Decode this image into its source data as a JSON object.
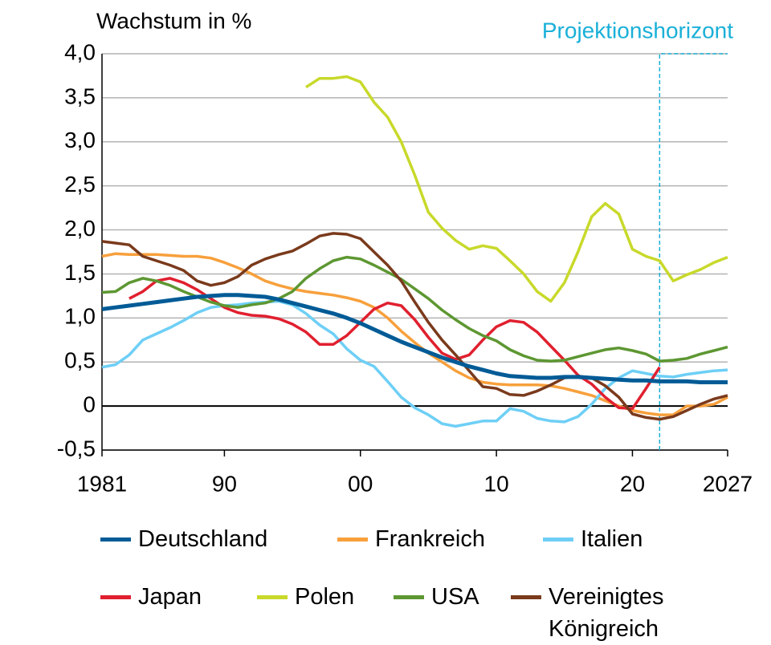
{
  "chart_data": {
    "type": "line",
    "title": "Wachstum in %",
    "annotation": {
      "label": "Projektionshorizont",
      "start": 2022,
      "end": 2027,
      "color": "#1ab0d8"
    },
    "x": [
      1981,
      1982,
      1983,
      1984,
      1985,
      1986,
      1987,
      1988,
      1989,
      1990,
      1991,
      1992,
      1993,
      1994,
      1995,
      1996,
      1997,
      1998,
      1999,
      2000,
      2001,
      2002,
      2003,
      2004,
      2005,
      2006,
      2007,
      2008,
      2009,
      2010,
      2011,
      2012,
      2013,
      2014,
      2015,
      2016,
      2017,
      2018,
      2019,
      2020,
      2021,
      2022,
      2023,
      2024,
      2025,
      2026,
      2027
    ],
    "xlim": [
      1981,
      2027
    ],
    "xticks": [
      {
        "value": 1981,
        "label": "1981"
      },
      {
        "value": 1990,
        "label": "90"
      },
      {
        "value": 2000,
        "label": "00"
      },
      {
        "value": 2010,
        "label": "10"
      },
      {
        "value": 2020,
        "label": "20"
      },
      {
        "value": 2027,
        "label": "2027"
      }
    ],
    "ylim": [
      -0.5,
      4.0
    ],
    "yticks": [
      {
        "value": -0.5,
        "label": "-0,5"
      },
      0,
      {
        "value": 0.5,
        "label": "0,5"
      },
      {
        "value": 1.0,
        "label": "1,0"
      },
      {
        "value": 1.5,
        "label": "1,5"
      },
      {
        "value": 2.0,
        "label": "2,0"
      },
      {
        "value": 2.5,
        "label": "2,5"
      },
      {
        "value": 3.0,
        "label": "3,0"
      },
      {
        "value": 3.5,
        "label": "3,5"
      },
      {
        "value": 4.0,
        "label": "4,0"
      }
    ],
    "grid": true,
    "series": [
      {
        "name": "Deutschland",
        "color": "#005b96",
        "values": [
          1.1,
          1.12,
          1.14,
          1.16,
          1.18,
          1.2,
          1.22,
          1.24,
          1.25,
          1.26,
          1.26,
          1.25,
          1.24,
          1.21,
          1.17,
          1.13,
          1.09,
          1.05,
          1.0,
          0.94,
          0.87,
          0.8,
          0.73,
          0.67,
          0.61,
          0.55,
          0.5,
          0.45,
          0.41,
          0.37,
          0.34,
          0.33,
          0.32,
          0.32,
          0.33,
          0.33,
          0.32,
          0.31,
          0.3,
          0.29,
          0.29,
          0.28,
          0.28,
          0.28,
          0.27,
          0.27,
          0.27
        ]
      },
      {
        "name": "Frankreich",
        "color": "#f7a03c",
        "values": [
          1.7,
          1.73,
          1.72,
          1.72,
          1.72,
          1.71,
          1.7,
          1.7,
          1.68,
          1.63,
          1.57,
          1.5,
          1.42,
          1.37,
          1.33,
          1.3,
          1.28,
          1.26,
          1.23,
          1.19,
          1.12,
          1.0,
          0.85,
          0.72,
          0.6,
          0.5,
          0.4,
          0.32,
          0.27,
          0.25,
          0.24,
          0.24,
          0.24,
          0.23,
          0.2,
          0.16,
          0.12,
          0.06,
          0.0,
          -0.05,
          -0.08,
          -0.1,
          -0.1,
          0.0,
          0.0,
          0.02,
          0.1
        ]
      },
      {
        "name": "Italien",
        "color": "#6ecff6",
        "values": [
          0.44,
          0.47,
          0.58,
          0.75,
          0.82,
          0.89,
          0.97,
          1.06,
          1.12,
          1.14,
          1.15,
          1.17,
          1.18,
          1.19,
          1.15,
          1.05,
          0.92,
          0.82,
          0.65,
          0.52,
          0.45,
          0.28,
          0.1,
          -0.02,
          -0.1,
          -0.2,
          -0.23,
          -0.2,
          -0.17,
          -0.17,
          -0.03,
          -0.06,
          -0.14,
          -0.17,
          -0.18,
          -0.12,
          0.02,
          0.2,
          0.32,
          0.4,
          0.37,
          0.34,
          0.33,
          0.36,
          0.38,
          0.4,
          0.41
        ]
      },
      {
        "name": "Japan",
        "color": "#e0202f",
        "values": [
          null,
          null,
          1.22,
          1.3,
          1.42,
          1.45,
          1.4,
          1.32,
          1.22,
          1.12,
          1.06,
          1.03,
          1.02,
          0.99,
          0.93,
          0.84,
          0.7,
          0.7,
          0.8,
          0.95,
          1.1,
          1.17,
          1.14,
          0.98,
          0.78,
          0.6,
          0.53,
          0.58,
          0.75,
          0.9,
          0.97,
          0.95,
          0.84,
          0.68,
          0.52,
          0.35,
          0.25,
          0.1,
          -0.02,
          -0.03,
          0.2,
          0.44,
          null,
          null,
          null,
          null,
          null
        ]
      },
      {
        "name": "Polen",
        "color": "#c8d92a",
        "values": [
          null,
          null,
          null,
          null,
          null,
          null,
          null,
          null,
          null,
          null,
          null,
          null,
          null,
          null,
          null,
          3.62,
          3.72,
          3.72,
          3.74,
          3.68,
          3.45,
          3.28,
          3.0,
          2.62,
          2.2,
          2.02,
          1.88,
          1.78,
          1.82,
          1.79,
          1.65,
          1.5,
          1.3,
          1.19,
          1.4,
          1.75,
          2.15,
          2.3,
          2.18,
          1.78,
          1.7,
          1.65,
          1.42,
          1.49,
          1.55,
          1.63,
          1.69
        ]
      },
      {
        "name": "USA",
        "color": "#5d9732",
        "values": [
          1.29,
          1.3,
          1.4,
          1.45,
          1.42,
          1.37,
          1.3,
          1.24,
          1.18,
          1.14,
          1.12,
          1.15,
          1.17,
          1.22,
          1.3,
          1.45,
          1.56,
          1.65,
          1.69,
          1.67,
          1.6,
          1.52,
          1.44,
          1.33,
          1.22,
          1.09,
          0.98,
          0.88,
          0.8,
          0.74,
          0.64,
          0.57,
          0.52,
          0.51,
          0.52,
          0.56,
          0.6,
          0.64,
          0.66,
          0.63,
          0.59,
          0.51,
          0.52,
          0.54,
          0.59,
          0.63,
          0.67
        ]
      },
      {
        "name": "Vereinigtes Königreich",
        "color": "#7a3a1c",
        "values": [
          1.87,
          1.85,
          1.83,
          1.7,
          1.65,
          1.6,
          1.54,
          1.42,
          1.37,
          1.4,
          1.47,
          1.6,
          1.67,
          1.72,
          1.76,
          1.84,
          1.93,
          1.96,
          1.95,
          1.9,
          1.75,
          1.6,
          1.42,
          1.18,
          0.95,
          0.75,
          0.58,
          0.4,
          0.22,
          0.2,
          0.13,
          0.12,
          0.17,
          0.24,
          0.32,
          0.34,
          0.32,
          0.23,
          0.1,
          -0.09,
          -0.13,
          -0.15,
          -0.12,
          -0.05,
          0.02,
          0.08,
          0.12
        ]
      }
    ]
  }
}
